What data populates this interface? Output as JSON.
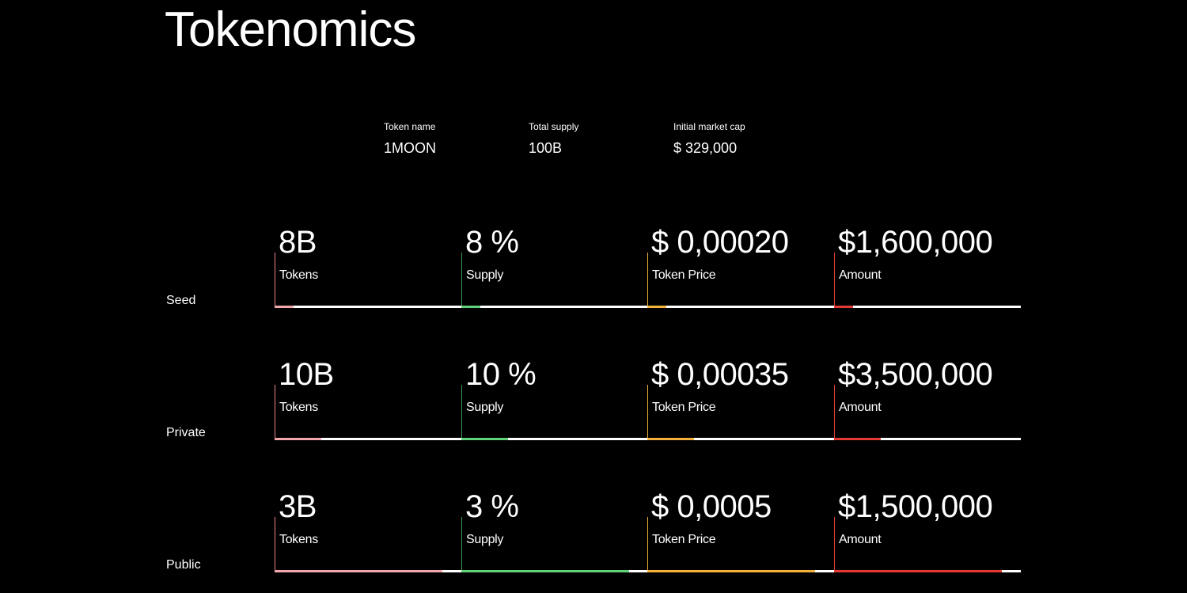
{
  "title": "Tokenomics",
  "token_info": [
    {
      "label": "Token name",
      "value": "1MOON"
    },
    {
      "label": "Total supply",
      "value": "100B"
    },
    {
      "label": "Initial market cap",
      "value": "$ 329,000"
    }
  ],
  "colors": {
    "tokens": "#f2a7ac",
    "supply": "#5fd27a",
    "price": "#f4b23c",
    "amount": "#e33a33",
    "track": "#ffffff",
    "background": "#000000"
  },
  "rounds": [
    {
      "name": "Seed",
      "progress_percent": 10,
      "tokens": {
        "value": "8B",
        "label": "Tokens"
      },
      "supply": {
        "value": "8 %",
        "label": "Supply"
      },
      "price": {
        "value": "$ 0,00020",
        "label": "Token Price"
      },
      "amount": {
        "value": "$1,600,000",
        "label": "Amount"
      }
    },
    {
      "name": "Private",
      "progress_percent": 25,
      "tokens": {
        "value": "10B",
        "label": "Tokens"
      },
      "supply": {
        "value": "10 %",
        "label": "Supply"
      },
      "price": {
        "value": "$ 0,00035",
        "label": "Token Price"
      },
      "amount": {
        "value": "$3,500,000",
        "label": "Amount"
      }
    },
    {
      "name": "Public",
      "progress_percent": 90,
      "tokens": {
        "value": "3B",
        "label": "Tokens"
      },
      "supply": {
        "value": "3 %",
        "label": "Supply"
      },
      "price": {
        "value": "$ 0,0005",
        "label": "Token Price"
      },
      "amount": {
        "value": "$1,500,000",
        "label": "Amount"
      }
    }
  ]
}
